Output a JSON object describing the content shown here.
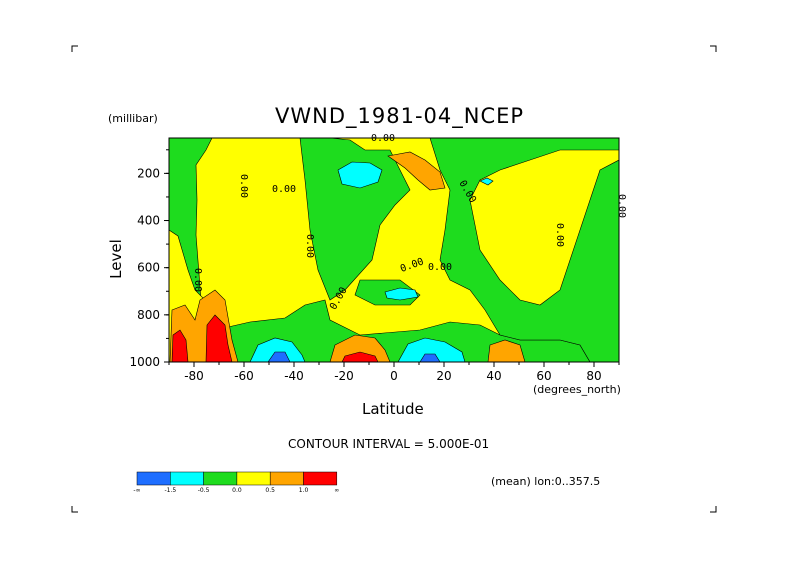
{
  "chart_data": {
    "type": "heatmap",
    "title": "VWND_1981-04_NCEP",
    "ylabel": "Level",
    "yunit": "(millibar)",
    "xlabel": "Latitude",
    "xunit": "(degrees_north)",
    "xlim": [
      -90,
      90
    ],
    "ylim": [
      1000,
      50
    ],
    "x_ticks": [
      "-80",
      "-60",
      "-40",
      "-20",
      "0",
      "20",
      "40",
      "60",
      "80"
    ],
    "y_ticks": [
      "200",
      "400",
      "600",
      "800",
      "1000"
    ],
    "contour_interval_text": "CONTOUR INTERVAL = 5.000E-01",
    "mean_text": "(mean) lon:0..357.5",
    "contour_labels": [
      "0.00",
      "0.00",
      "0.00",
      "0.00",
      "0.00",
      "0.00",
      "0.00",
      "0.00",
      "0.00",
      "0.00",
      "0.00"
    ],
    "colorbar": {
      "levels": [
        "-∞",
        "-1.5",
        "-0.5",
        "0.0",
        "0.5",
        "1.0",
        "∞"
      ],
      "colors": [
        "#1e6eff",
        "#00ffff",
        "#1edc1e",
        "#ffff00",
        "#ffa500",
        "#ff0000"
      ]
    },
    "field_notes": {
      "positive_max_region": "near -85 to -70 lat, 850-1000 mb",
      "negative_min_regions": [
        "-50 lat at 1000 mb",
        "15 lat at 1000 mb",
        "-20 lat at 170 mb"
      ]
    }
  }
}
